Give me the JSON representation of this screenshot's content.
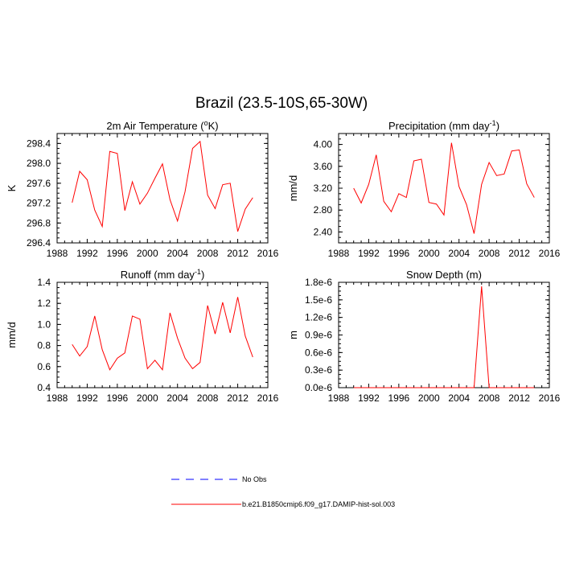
{
  "figure": {
    "title": "Brazil (23.5-10S,65-30W)"
  },
  "colors": {
    "series": "#ff0000",
    "obs": "#0000ff",
    "axis": "#000000"
  },
  "legend": [
    {
      "label": "No Obs",
      "style": "dashed",
      "color": "#0000ff"
    },
    {
      "label": "b.e21.B1850cmip6.f09_g17.DAMIP-hist-sol.003",
      "style": "solid",
      "color": "#ff0000"
    }
  ],
  "chart_data": [
    {
      "type": "line",
      "title": "2m Air Temperature (",
      "title_sup": "o",
      "title_suffix": "K)",
      "ylabel": "K",
      "xlim": [
        1988,
        2016
      ],
      "ylim": [
        296.4,
        298.6
      ],
      "xticks": [
        1988,
        1992,
        1996,
        2000,
        2004,
        2008,
        2012,
        2016
      ],
      "yticks": [
        296.4,
        296.8,
        297.2,
        297.6,
        298.0,
        298.4
      ],
      "ytick_labels": [
        "296.4",
        "296.8",
        "297.2",
        "297.6",
        "298.0",
        "298.4"
      ],
      "x": [
        1990,
        1991,
        1992,
        1993,
        1994,
        1995,
        1996,
        1997,
        1998,
        1999,
        2000,
        2001,
        2002,
        2003,
        2004,
        2005,
        2006,
        2007,
        2008,
        2009,
        2010,
        2011,
        2012,
        2013,
        2014
      ],
      "series": [
        {
          "values": [
            297.21,
            297.84,
            297.67,
            297.06,
            296.73,
            298.24,
            298.2,
            297.05,
            297.63,
            297.18,
            297.4,
            297.7,
            297.99,
            297.27,
            296.84,
            297.43,
            298.3,
            298.44,
            297.36,
            297.09,
            297.57,
            297.6,
            296.63,
            297.08,
            297.31
          ]
        }
      ]
    },
    {
      "type": "line",
      "title": "Precipitation (mm day",
      "title_sup": "-1",
      "title_suffix": ")",
      "ylabel": "mm/d",
      "xlim": [
        1988,
        2016
      ],
      "ylim": [
        2.2,
        4.2
      ],
      "xticks": [
        1988,
        1992,
        1996,
        2000,
        2004,
        2008,
        2012,
        2016
      ],
      "yticks": [
        2.4,
        2.8,
        3.2,
        3.6,
        4.0
      ],
      "ytick_labels": [
        "2.40",
        "2.80",
        "3.20",
        "3.60",
        "4.00"
      ],
      "x": [
        1990,
        1991,
        1992,
        1993,
        1994,
        1995,
        1996,
        1997,
        1998,
        1999,
        2000,
        2001,
        2002,
        2003,
        2004,
        2005,
        2006,
        2007,
        2008,
        2009,
        2010,
        2011,
        2012,
        2013,
        2014
      ],
      "series": [
        {
          "values": [
            3.2,
            2.93,
            3.27,
            3.81,
            2.96,
            2.77,
            3.1,
            3.03,
            3.7,
            3.73,
            2.94,
            2.91,
            2.71,
            4.03,
            3.23,
            2.9,
            2.37,
            3.27,
            3.67,
            3.43,
            3.46,
            3.88,
            3.9,
            3.28,
            3.03
          ]
        }
      ]
    },
    {
      "type": "line",
      "title": "Runoff (mm day",
      "title_sup": "-1",
      "title_suffix": ")",
      "ylabel": "mm/d",
      "xlim": [
        1988,
        2016
      ],
      "ylim": [
        0.4,
        1.4
      ],
      "xticks": [
        1988,
        1992,
        1996,
        2000,
        2004,
        2008,
        2012,
        2016
      ],
      "yticks": [
        0.4,
        0.6,
        0.8,
        1.0,
        1.2,
        1.4
      ],
      "ytick_labels": [
        "0.4",
        "0.6",
        "0.8",
        "1.0",
        "1.2",
        "1.4"
      ],
      "x": [
        1990,
        1991,
        1992,
        1993,
        1994,
        1995,
        1996,
        1997,
        1998,
        1999,
        2000,
        2001,
        2002,
        2003,
        2004,
        2005,
        2006,
        2007,
        2008,
        2009,
        2010,
        2011,
        2012,
        2013,
        2014
      ],
      "series": [
        {
          "values": [
            0.81,
            0.7,
            0.79,
            1.08,
            0.76,
            0.57,
            0.68,
            0.73,
            1.08,
            1.05,
            0.58,
            0.66,
            0.57,
            1.11,
            0.87,
            0.68,
            0.58,
            0.64,
            1.18,
            0.91,
            1.21,
            0.92,
            1.26,
            0.89,
            0.69
          ]
        }
      ]
    },
    {
      "type": "line",
      "title": "Snow Depth (m)",
      "title_sup": "",
      "title_suffix": "",
      "ylabel": "m",
      "xlim": [
        1988,
        2016
      ],
      "ylim": [
        0,
        1.8e-06
      ],
      "xticks": [
        1988,
        1992,
        1996,
        2000,
        2004,
        2008,
        2012,
        2016
      ],
      "yticks": [
        0,
        3e-07,
        6e-07,
        9e-07,
        1.2e-06,
        1.5e-06,
        1.8e-06
      ],
      "ytick_labels": [
        "0.0e-6",
        "0.3e-6",
        "0.6e-6",
        "0.9e-6",
        "1.2e-6",
        "1.5e-6",
        "1.8e-6"
      ],
      "x": [
        1990,
        1991,
        1992,
        1993,
        1994,
        1995,
        1996,
        1997,
        1998,
        1999,
        2000,
        2001,
        2002,
        2003,
        2004,
        2005,
        2006,
        2007,
        2008,
        2009,
        2010,
        2011,
        2012,
        2013,
        2014
      ],
      "series": [
        {
          "values": [
            0,
            0,
            0,
            0,
            0,
            0,
            0,
            0,
            0,
            0,
            0,
            0,
            0,
            0,
            0,
            0,
            0,
            1.73e-06,
            0,
            0,
            0,
            0,
            0,
            0,
            0
          ]
        }
      ]
    }
  ]
}
